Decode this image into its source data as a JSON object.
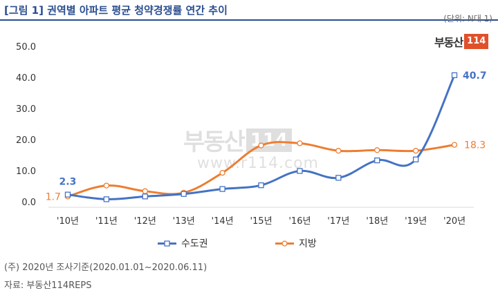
{
  "title": "[그림 1] 권역별 아파트 평균 청약경쟁률 연간 추이",
  "unit": "(단위: N대 1)",
  "logo": {
    "text": "부동산",
    "box": "114"
  },
  "watermark": {
    "text": "부동산",
    "box": "114",
    "url": "www.r114.com"
  },
  "footnotes": {
    "note": "(주) 2020년 조사기준(2020.01.01~2020.06.11)",
    "source": "자료: 부동산114REPS"
  },
  "chart_data": {
    "type": "line",
    "categories": [
      "'10년",
      "'11년",
      "'12년",
      "'13년",
      "'14년",
      "'15년",
      "'16년",
      "'17년",
      "'18년",
      "'19년",
      "'20년"
    ],
    "yticks": [
      "0.0",
      "10.0",
      "20.0",
      "30.0",
      "40.0",
      "50.0"
    ],
    "ylim": [
      0,
      50
    ],
    "grid": false,
    "legend_position": "bottom",
    "series": [
      {
        "name": "수도권",
        "color": "#4472c4",
        "marker": "square",
        "values": [
          2.3,
          0.8,
          1.7,
          2.5,
          4.1,
          5.3,
          9.9,
          7.7,
          13.3,
          13.6,
          40.7
        ],
        "labels": [
          {
            "index": 0,
            "text": "2.3"
          },
          {
            "index": 10,
            "text": "40.7"
          }
        ]
      },
      {
        "name": "지방",
        "color": "#ed7d31",
        "marker": "circle",
        "values": [
          1.7,
          5.2,
          3.4,
          2.9,
          9.3,
          18.1,
          18.8,
          16.4,
          16.6,
          16.4,
          18.3
        ],
        "labels": [
          {
            "index": 0,
            "text": "1.7"
          },
          {
            "index": 10,
            "text": "18.3"
          }
        ]
      }
    ]
  }
}
